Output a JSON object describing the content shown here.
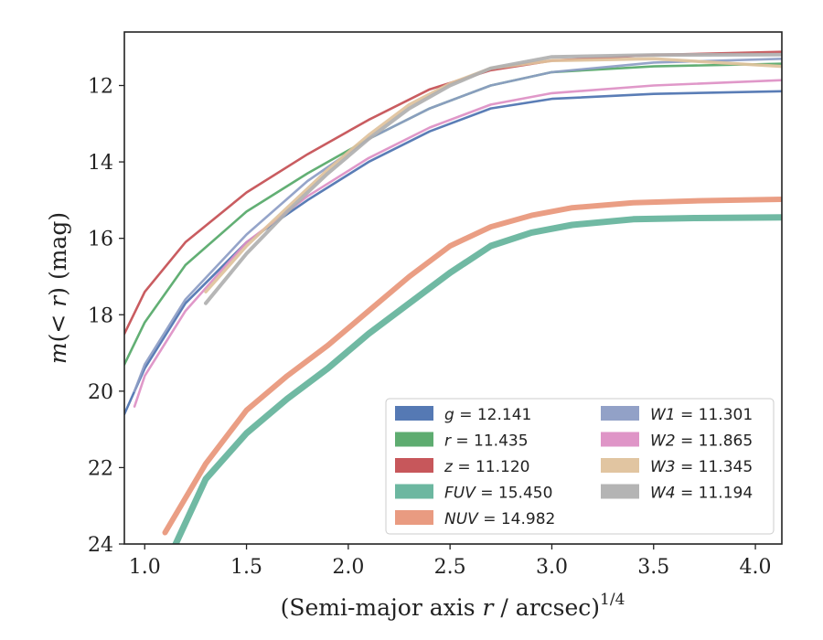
{
  "chart_data": {
    "type": "line",
    "title": "",
    "xlabel": "(Semi-major axis r / arcsec)",
    "xlabel_parts": {
      "pre": "(Semi-major axis ",
      "var": "r",
      "post": " / arcsec)",
      "sup": "1/4"
    },
    "ylabel": "m(< r) (mag)",
    "ylabel_parts": {
      "m": "m",
      "open": "(",
      "lt": "< ",
      "r": "r",
      "close": ")",
      "unit": " (mag)"
    },
    "xlim": [
      0.9,
      4.13
    ],
    "ylim": [
      24,
      10.6
    ],
    "y_inverted": true,
    "xticks": [
      1.0,
      1.5,
      2.0,
      2.5,
      3.0,
      3.5,
      4.0
    ],
    "xtick_labels": [
      "1.0",
      "1.5",
      "2.0",
      "2.5",
      "3.0",
      "3.5",
      "4.0"
    ],
    "yticks": [
      12,
      14,
      16,
      18,
      20,
      22,
      24
    ],
    "ytick_labels": [
      "12",
      "14",
      "16",
      "18",
      "20",
      "22",
      "24"
    ],
    "grid": false,
    "legend_position": "lower-right",
    "legend_columns": 2,
    "series": [
      {
        "name": "g",
        "label_value": "= 12.141",
        "color": "#4c72b0",
        "width": 2.6,
        "x": [
          0.9,
          1.0,
          1.2,
          1.5,
          1.8,
          2.1,
          2.4,
          2.7,
          3.0,
          3.5,
          4.13
        ],
        "y": [
          20.6,
          19.4,
          17.7,
          16.1,
          15.0,
          14.0,
          13.2,
          12.6,
          12.35,
          12.22,
          12.15
        ]
      },
      {
        "name": "r",
        "label_value": "= 11.435",
        "color": "#55a868",
        "width": 2.6,
        "x": [
          0.9,
          1.0,
          1.2,
          1.5,
          1.8,
          2.1,
          2.4,
          2.7,
          3.0,
          3.5,
          4.13
        ],
        "y": [
          19.3,
          18.2,
          16.7,
          15.3,
          14.3,
          13.4,
          12.6,
          12.0,
          11.65,
          11.5,
          11.43
        ]
      },
      {
        "name": "z",
        "label_value": "= 11.120",
        "color": "#c44e52",
        "width": 2.6,
        "x": [
          0.9,
          1.0,
          1.2,
          1.5,
          1.8,
          2.1,
          2.4,
          2.7,
          3.0,
          3.5,
          4.13
        ],
        "y": [
          18.5,
          17.4,
          16.1,
          14.8,
          13.8,
          12.9,
          12.1,
          11.6,
          11.35,
          11.2,
          11.12
        ]
      },
      {
        "name": "FUV",
        "label_value": "= 15.450",
        "color": "#64b39b",
        "width": 7,
        "x": [
          1.1,
          1.3,
          1.5,
          1.7,
          1.9,
          2.1,
          2.3,
          2.5,
          2.7,
          2.9,
          3.1,
          3.4,
          3.7,
          4.13
        ],
        "y": [
          24.6,
          22.3,
          21.1,
          20.2,
          19.4,
          18.5,
          17.7,
          16.9,
          16.2,
          15.85,
          15.65,
          15.5,
          15.47,
          15.45
        ]
      },
      {
        "name": "NUV",
        "label_value": "= 14.982",
        "color": "#e8967a",
        "width": 6,
        "x": [
          1.1,
          1.3,
          1.5,
          1.7,
          1.9,
          2.1,
          2.3,
          2.5,
          2.7,
          2.9,
          3.1,
          3.4,
          3.7,
          4.13
        ],
        "y": [
          23.7,
          21.9,
          20.5,
          19.6,
          18.8,
          17.9,
          17.0,
          16.2,
          15.7,
          15.4,
          15.2,
          15.07,
          15.02,
          14.98
        ]
      },
      {
        "name": "W1",
        "label_value": "= 11.301",
        "color": "#8c9cc4",
        "width": 2.6,
        "x": [
          0.95,
          1.0,
          1.2,
          1.5,
          1.8,
          2.1,
          2.4,
          2.7,
          3.0,
          3.5,
          4.13
        ],
        "y": [
          20.0,
          19.3,
          17.6,
          15.9,
          14.5,
          13.4,
          12.6,
          12.0,
          11.65,
          11.4,
          11.3
        ]
      },
      {
        "name": "W2",
        "label_value": "= 11.865",
        "color": "#dd8fc4",
        "width": 2.6,
        "x": [
          0.95,
          1.0,
          1.2,
          1.5,
          1.8,
          2.1,
          2.4,
          2.7,
          3.0,
          3.5,
          4.13
        ],
        "y": [
          20.4,
          19.6,
          17.9,
          16.1,
          14.9,
          13.9,
          13.1,
          12.5,
          12.2,
          12.0,
          11.86
        ]
      },
      {
        "name": "W3",
        "label_value": "= 11.345",
        "color": "#dfc29c",
        "width": 3.5,
        "x": [
          1.3,
          1.5,
          1.7,
          1.9,
          2.1,
          2.3,
          2.5,
          2.7,
          3.0,
          3.5,
          4.13
        ],
        "y": [
          17.4,
          16.2,
          15.2,
          14.2,
          13.3,
          12.5,
          11.95,
          11.55,
          11.35,
          11.3,
          11.5
        ]
      },
      {
        "name": "W4",
        "label_value": "= 11.194",
        "color": "#b0b0b0",
        "width": 4,
        "x": [
          1.3,
          1.5,
          1.7,
          1.9,
          2.1,
          2.3,
          2.5,
          2.7,
          3.0,
          3.5,
          4.13
        ],
        "y": [
          17.7,
          16.4,
          15.3,
          14.3,
          13.4,
          12.6,
          12.0,
          11.55,
          11.25,
          11.2,
          11.19
        ]
      }
    ]
  }
}
